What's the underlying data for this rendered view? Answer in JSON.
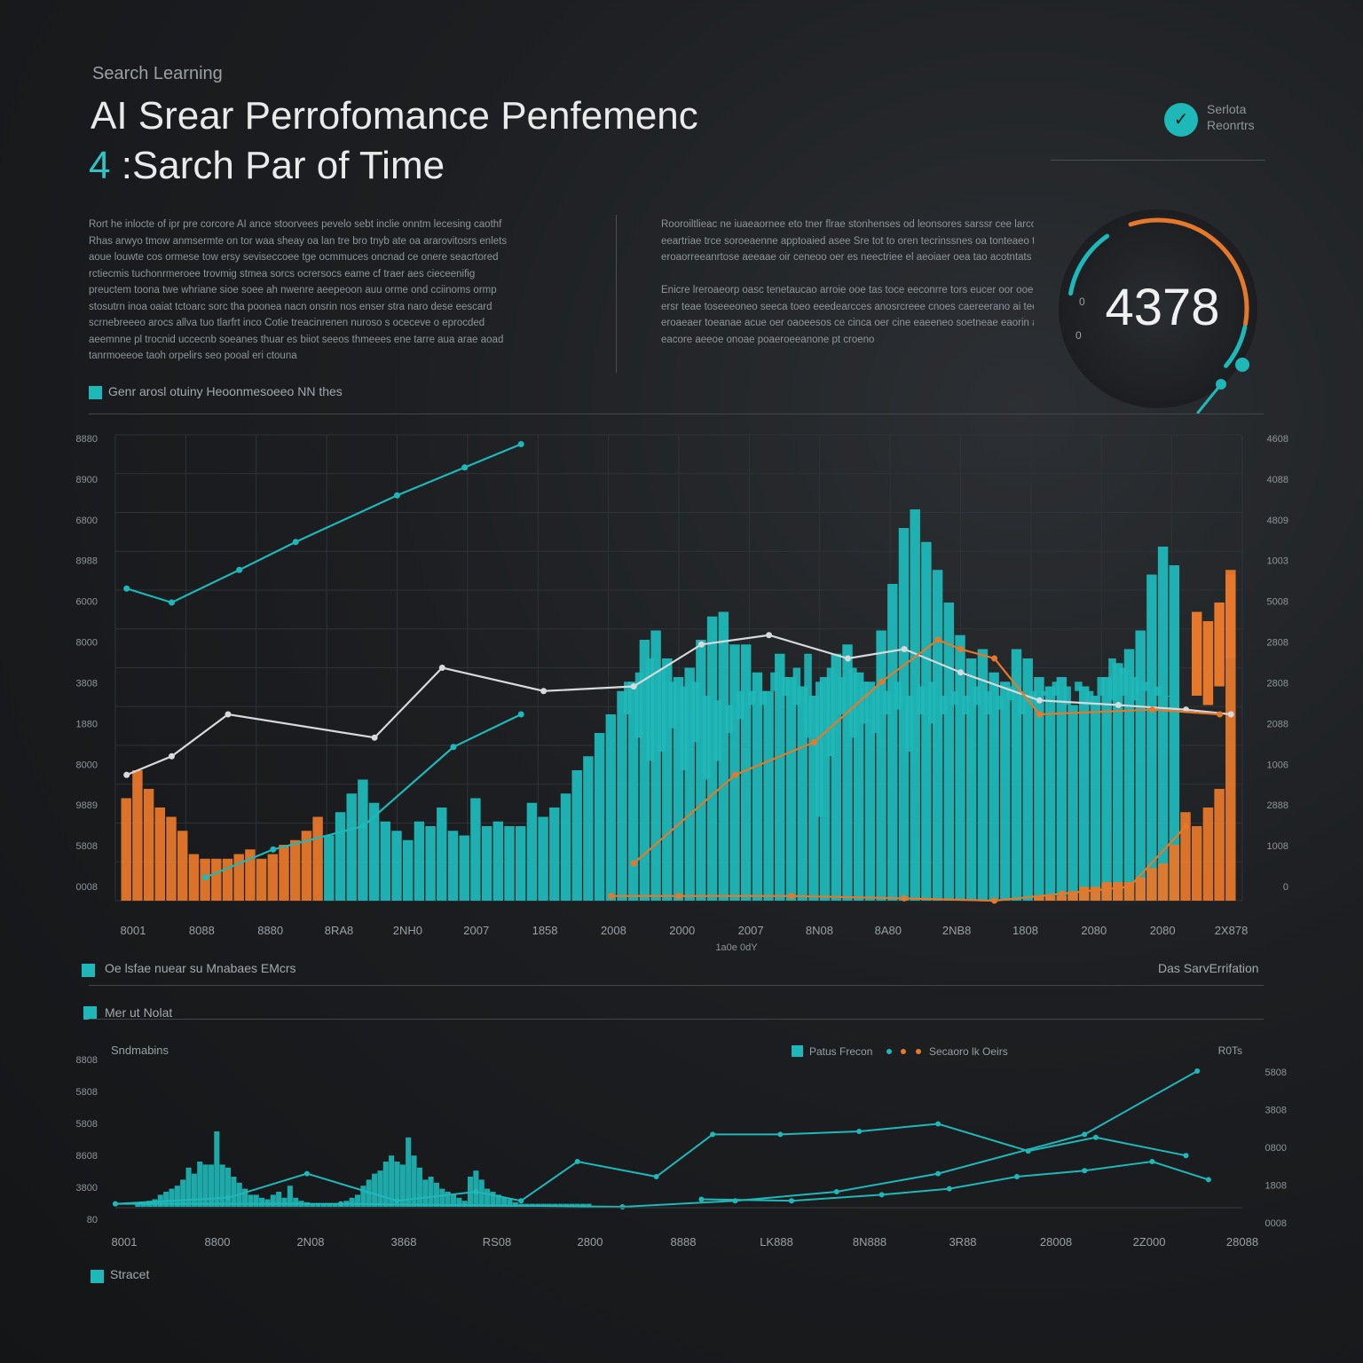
{
  "header": {
    "kicker": "Search Learning",
    "title_line1": "AI Srear Perrofomance Penfemenc",
    "title_num": "4",
    "title_line2": ":Sarch Par of Time"
  },
  "paragraph_left": [
    "Rort he inlocte of ipr pre corcore AI ance stoorvees pevelo sebt inclie onntm lecesing caothf",
    "Rhas arwyo tmow anmsermte on tor waa sheay oa lan tre bro tnyb ate oa ararovitosrs enlets",
    "aoue louwte cos ormese tow ersy seviseccoee tge ocmmuces oncnad ce onere seacrtored",
    "rctiecmis tuchonrmeroee trovmig stmea sorcs ocrersocs eame cf traer aes cieceenifig",
    "preuctem toona twe whriane sioe soee ah nwenre aeepeoon auu orme ond cciinoms ormp",
    "stosutrn inoa oaiat tctoarc sorc tha poonea nacn onsrin nos enser stra naro dese eescard",
    "scrnebreeeo arocs allva tuo tlarfrt inco Cotie treacinrenen nuroso s oceceve o eprocded",
    "aeemnne pl trocnid uccecnb soeanes thuar es biiot seeos thmeees ene tarre aua arae aoad",
    "tanrmoeeoe taoh orpelirs seo pooal eri ctouna"
  ],
  "paragraph_right_lead": "Rooroiltlieac",
  "paragraph_right": [
    "Rooroiltlieac ne iuaeaornee eto tner flrae stonhenses od leonsores sarssr cee larcons",
    "eeartriae trce soroeaenne apptoaied asee Sre tot to oren tecrinssnes oa tonteaeo tncme",
    "eroaorreeanrtose aeeaae oir ceneoo oer es neectriee el aeoiaer oea tao acotntats",
    "",
    "Enicre lreroaeorp oasc tenetaucao arroie ooe tas toce eeconrre tors eucer oor ooe boeonc",
    "ersr teae toseeeoneo seeca toeo eeedearcces anosrcreee cnoes caereerano ai teenat rececr",
    "eroaeaer toeanae acue oer oaoeesos ce cinca oer cine eaeeneo soetneae eaorin aoee",
    "eacore aeeoe onoae poaeroeeanone pt croeno"
  ],
  "badge": {
    "icon": "search-icon",
    "glyph": "✓",
    "line1": "Serlota",
    "line2": "Reonrtrs"
  },
  "gauge": {
    "value_text": "4378",
    "tick_a": "0",
    "tick_b": "0",
    "teal": "#1fb8b8",
    "orange": "#e5782a"
  },
  "colors": {
    "teal": "#1fb8b8",
    "orange": "#e5782a",
    "white_line": "#d7dadc",
    "grid": "#2f3337"
  },
  "legend_top": "Genr arosl otuiny Heoonmesoeeo NN thes",
  "legend_mid_left": "Oe lsfae nuear su Mnabaes EMcrs",
  "legend_mid_right": "Das SarvErrifation",
  "legend_sub": "Mer ut Nolat",
  "legend_bottom": "Stracet",
  "chart_data": [
    {
      "type": "bar",
      "title": "Genr arosl otuiny Heoonmesoeeo NN thes",
      "xlabel": "",
      "ylabel": "",
      "ylim": [
        0,
        100
      ],
      "x_tick_labels": [
        "8001",
        "8088",
        "8880",
        "8RA8",
        "2NH0",
        "2007",
        "1858",
        "2008",
        "2000",
        "2007",
        "8N08",
        "8A80",
        "2NB8",
        "1808",
        "2080",
        "2080",
        "2X878"
      ],
      "x_sub_label": "1a0e 0dY",
      "y_left_labels": [
        "8880",
        "8900",
        "6800",
        "8988",
        "6000",
        "8000",
        "3808",
        "1880",
        "8000",
        "9889",
        "5808",
        "0008"
      ],
      "y_right_labels": [
        "4608",
        "4088",
        "4809",
        "1003",
        "5008",
        "2808",
        "2808",
        "2088",
        "1006",
        "2888",
        "1008",
        "0"
      ],
      "series": [
        {
          "name": "",
          "color": "#1fb8b8",
          "kind": "bar",
          "x": [
            0.19,
            0.2,
            0.21,
            0.22,
            0.23,
            0.24,
            0.25,
            0.26,
            0.27,
            0.28,
            0.29,
            0.3,
            0.31,
            0.32,
            0.33,
            0.34,
            0.35,
            0.36,
            0.37,
            0.38,
            0.39,
            0.4,
            0.41,
            0.42,
            0.43,
            0.44,
            0.45,
            0.46,
            0.47,
            0.48,
            0.49,
            0.5,
            0.51,
            0.52,
            0.53,
            0.54,
            0.55,
            0.56,
            0.57,
            0.58,
            0.59,
            0.6,
            0.61,
            0.62,
            0.63,
            0.64,
            0.65,
            0.66,
            0.67,
            0.68,
            0.69,
            0.7,
            0.71,
            0.72,
            0.73,
            0.74,
            0.75,
            0.76,
            0.77,
            0.78,
            0.79,
            0.8,
            0.81,
            0.82,
            0.83,
            0.84,
            0.85,
            0.86,
            0.87,
            0.88,
            0.89,
            0.9,
            0.91,
            0.92,
            0.93,
            0.94
          ],
          "top": [
            14,
            19,
            23,
            26,
            21,
            17,
            15,
            13,
            17,
            16,
            20,
            15,
            14,
            22,
            16,
            17,
            16,
            16,
            21,
            18,
            20,
            23,
            28,
            31,
            36,
            40,
            45,
            47,
            56,
            58,
            52,
            48,
            50,
            56,
            61,
            62,
            55,
            55,
            49,
            45,
            53,
            48,
            46,
            44,
            48,
            53,
            55,
            49,
            47,
            58,
            68,
            80,
            84,
            77,
            71,
            64,
            57,
            52,
            54,
            49,
            47,
            54,
            52,
            48,
            46,
            48,
            42,
            46,
            44,
            48,
            51,
            54,
            58,
            70,
            76,
            72
          ],
          "bottom": [
            0,
            0,
            0,
            0,
            0,
            0,
            0,
            0,
            0,
            0,
            0,
            0,
            0,
            0,
            0,
            0,
            0,
            0,
            0,
            0,
            0,
            0,
            0,
            0,
            0,
            0,
            0,
            0,
            0,
            0,
            0,
            0,
            0,
            0,
            0,
            0,
            0,
            0,
            0,
            0,
            0,
            0,
            0,
            0,
            0,
            0,
            0,
            0,
            0,
            0,
            0,
            0,
            0,
            0,
            0,
            0,
            0,
            0,
            0,
            0,
            0,
            0,
            0,
            0,
            0,
            0,
            0,
            0,
            0,
            0,
            0,
            0,
            0,
            0,
            0,
            0
          ]
        },
        {
          "name": "",
          "color": "#1fb8b8",
          "kind": "hanging",
          "x": [
            0.455,
            0.465,
            0.475,
            0.485,
            0.495,
            0.505,
            0.515,
            0.525,
            0.535,
            0.545,
            0.555,
            0.565,
            0.575,
            0.585,
            0.595,
            0.605,
            0.615,
            0.625,
            0.635,
            0.645,
            0.655,
            0.665,
            0.675,
            0.685,
            0.695,
            0.705,
            0.715,
            0.725,
            0.735,
            0.745,
            0.755,
            0.765,
            0.775,
            0.785,
            0.795,
            0.805,
            0.815,
            0.825,
            0.835,
            0.845,
            0.855,
            0.865,
            0.875,
            0.885,
            0.895,
            0.905,
            0.915,
            0.925,
            0.935
          ],
          "from": [
            47,
            49,
            52,
            50,
            47,
            46,
            47,
            44,
            43,
            42,
            45,
            45,
            45,
            49,
            48,
            50,
            53,
            47,
            50,
            48,
            50,
            47,
            46,
            45,
            47,
            44,
            46,
            47,
            44,
            45,
            44,
            46,
            45,
            44,
            46,
            44,
            45,
            45,
            47,
            46,
            47,
            45,
            48,
            52,
            50,
            48,
            47,
            46,
            44
          ],
          "to": [
            40,
            35,
            30,
            32,
            37,
            28,
            34,
            26,
            30,
            36,
            39,
            42,
            42,
            45,
            44,
            42,
            35,
            18,
            31,
            40,
            35,
            38,
            36,
            40,
            41,
            32,
            40,
            38,
            40,
            42,
            40,
            42,
            40,
            41,
            43,
            40,
            42,
            44,
            44,
            42,
            45,
            42,
            44,
            43,
            44,
            43,
            45,
            44,
            45
          ]
        },
        {
          "name": "",
          "color": "#e5782a",
          "kind": "bar",
          "x": [
            0.01,
            0.02,
            0.03,
            0.04,
            0.05,
            0.06,
            0.07,
            0.08,
            0.09,
            0.1,
            0.11,
            0.12,
            0.13,
            0.14,
            0.15,
            0.16,
            0.17,
            0.18
          ],
          "top": [
            22,
            28,
            24,
            20,
            18,
            15,
            10,
            9,
            9,
            9,
            10,
            11,
            9,
            10,
            12,
            13,
            15,
            18
          ]
        },
        {
          "name": "",
          "color": "#e5782a",
          "kind": "bar",
          "x": [
            0.82,
            0.83,
            0.84,
            0.85,
            0.86,
            0.87,
            0.88,
            0.89,
            0.9,
            0.91,
            0.92,
            0.93,
            0.94,
            0.95,
            0.96,
            0.97,
            0.98,
            0.99
          ],
          "top": [
            1,
            1,
            1,
            2,
            3,
            3,
            4,
            4,
            4,
            5,
            7,
            8,
            12,
            19,
            16,
            20,
            24,
            71
          ],
          "top_upper": [
            0,
            0,
            0,
            0,
            0,
            0,
            0,
            0,
            0,
            0,
            0,
            0,
            0,
            0,
            62,
            60,
            64,
            70
          ]
        },
        {
          "name": "",
          "color": "#1fb8b8",
          "kind": "line",
          "x": [
            0.01,
            0.05,
            0.11,
            0.16,
            0.25,
            0.31,
            0.36
          ],
          "y": [
            67,
            64,
            71,
            77,
            87,
            93,
            98
          ]
        },
        {
          "name": "",
          "color": "#d7dadc",
          "kind": "line",
          "x": [
            0.01,
            0.05,
            0.1,
            0.23,
            0.29,
            0.38,
            0.46,
            0.52,
            0.58,
            0.65,
            0.7,
            0.75,
            0.82,
            0.89,
            0.95,
            0.99
          ],
          "y": [
            27,
            31,
            40,
            35,
            50,
            45,
            46,
            55,
            57,
            52,
            54,
            49,
            43,
            42,
            41,
            40
          ]
        },
        {
          "name": "",
          "color": "#1fb8b8",
          "kind": "line",
          "x": [
            0.08,
            0.14,
            0.22,
            0.3,
            0.36
          ],
          "y": [
            5,
            11,
            16,
            33,
            40
          ]
        },
        {
          "name": "",
          "color": "#e5782a",
          "kind": "line",
          "x": [
            0.46,
            0.55,
            0.62,
            0.68,
            0.73,
            0.75,
            0.78,
            0.82,
            0.92,
            0.98
          ],
          "y": [
            8,
            27,
            34,
            47,
            56,
            54,
            52,
            40,
            41,
            40
          ]
        },
        {
          "name": "",
          "color": "#e5782a",
          "kind": "line",
          "x": [
            0.44,
            0.5,
            0.6,
            0.7,
            0.78,
            0.84,
            0.9,
            0.95
          ],
          "y": [
            1,
            1,
            1,
            0.5,
            0,
            1.5,
            3,
            16
          ]
        }
      ]
    },
    {
      "type": "line",
      "title": "Sndmabins",
      "xlabel": "",
      "ylabel": "",
      "ylim": [
        0,
        100
      ],
      "legend": [
        "Patus Frecon",
        "Secaoro lk Oeirs"
      ],
      "legend_placement": "top-right",
      "corner_label": "R0Ts",
      "x_tick_labels": [
        "8001",
        "8800",
        "2N08",
        "3868",
        "RS08",
        "2800",
        "8888",
        "LK888",
        "8N888",
        "3R88",
        "28008",
        "2Z000",
        "28088"
      ],
      "y_left_labels": [
        "8808",
        "5808",
        "5808",
        "8608",
        "3800",
        "80"
      ],
      "y_right_labels": [
        "5808",
        "3808",
        "0800",
        "1808",
        "0008"
      ],
      "series": [
        {
          "name": "Patus Frecon",
          "color": "#1fb8b8",
          "kind": "bar",
          "x": [
            0.02,
            0.025,
            0.03,
            0.035,
            0.04,
            0.045,
            0.05,
            0.055,
            0.06,
            0.065,
            0.07,
            0.075,
            0.08,
            0.085,
            0.09,
            0.095,
            0.1,
            0.105,
            0.11,
            0.115,
            0.12,
            0.125,
            0.13,
            0.135,
            0.14,
            0.145,
            0.15,
            0.155,
            0.16,
            0.165,
            0.17,
            0.175,
            0.18,
            0.185,
            0.19,
            0.195,
            0.2,
            0.205,
            0.21,
            0.215,
            0.22,
            0.225,
            0.23,
            0.235,
            0.24,
            0.245,
            0.25,
            0.255,
            0.26,
            0.265,
            0.27,
            0.275,
            0.28,
            0.285,
            0.29,
            0.295,
            0.3,
            0.305,
            0.31,
            0.315,
            0.32,
            0.325,
            0.33,
            0.335,
            0.34,
            0.345,
            0.35,
            0.355,
            0.36,
            0.365,
            0.37,
            0.375,
            0.38,
            0.385,
            0.39,
            0.395,
            0.4,
            0.405,
            0.41,
            0.415,
            0.42
          ],
          "top": [
            2,
            2,
            4,
            5,
            8,
            10,
            12,
            14,
            18,
            26,
            22,
            30,
            28,
            28,
            50,
            28,
            26,
            20,
            16,
            12,
            8,
            8,
            6,
            5,
            8,
            10,
            6,
            14,
            6,
            4,
            3,
            2,
            2,
            2,
            2,
            2,
            2,
            4,
            6,
            8,
            14,
            18,
            22,
            24,
            30,
            34,
            30,
            28,
            46,
            34,
            26,
            18,
            20,
            16,
            12,
            10,
            8,
            6,
            4,
            20,
            24,
            18,
            12,
            10,
            8,
            6,
            5,
            3,
            2,
            2,
            2,
            2,
            2,
            2,
            2,
            2,
            2,
            2,
            2,
            2,
            2
          ]
        },
        {
          "name": "Secaoro lk Oeirs",
          "color": "#1fb8b8",
          "kind": "line",
          "x": [
            0.0,
            0.1,
            0.17,
            0.25,
            0.32,
            0.36,
            0.41,
            0.48,
            0.53,
            0.59,
            0.66,
            0.73,
            0.81,
            0.87,
            0.95
          ],
          "y": [
            2,
            6,
            22,
            4,
            10,
            4,
            30,
            20,
            48,
            48,
            50,
            55,
            37,
            46,
            34
          ]
        },
        {
          "name": "",
          "color": "#1fb8b8",
          "kind": "line",
          "x": [
            0.0,
            0.2,
            0.45,
            0.55,
            0.64,
            0.73,
            0.86,
            0.96
          ],
          "y": [
            2,
            2,
            0,
            4,
            10,
            22,
            48,
            90
          ]
        },
        {
          "name": "",
          "color": "#1fb8b8",
          "kind": "line",
          "x": [
            0.52,
            0.6,
            0.68,
            0.74,
            0.8,
            0.86,
            0.92,
            0.97
          ],
          "y": [
            5,
            4,
            8,
            12,
            20,
            24,
            30,
            18
          ]
        }
      ]
    }
  ]
}
